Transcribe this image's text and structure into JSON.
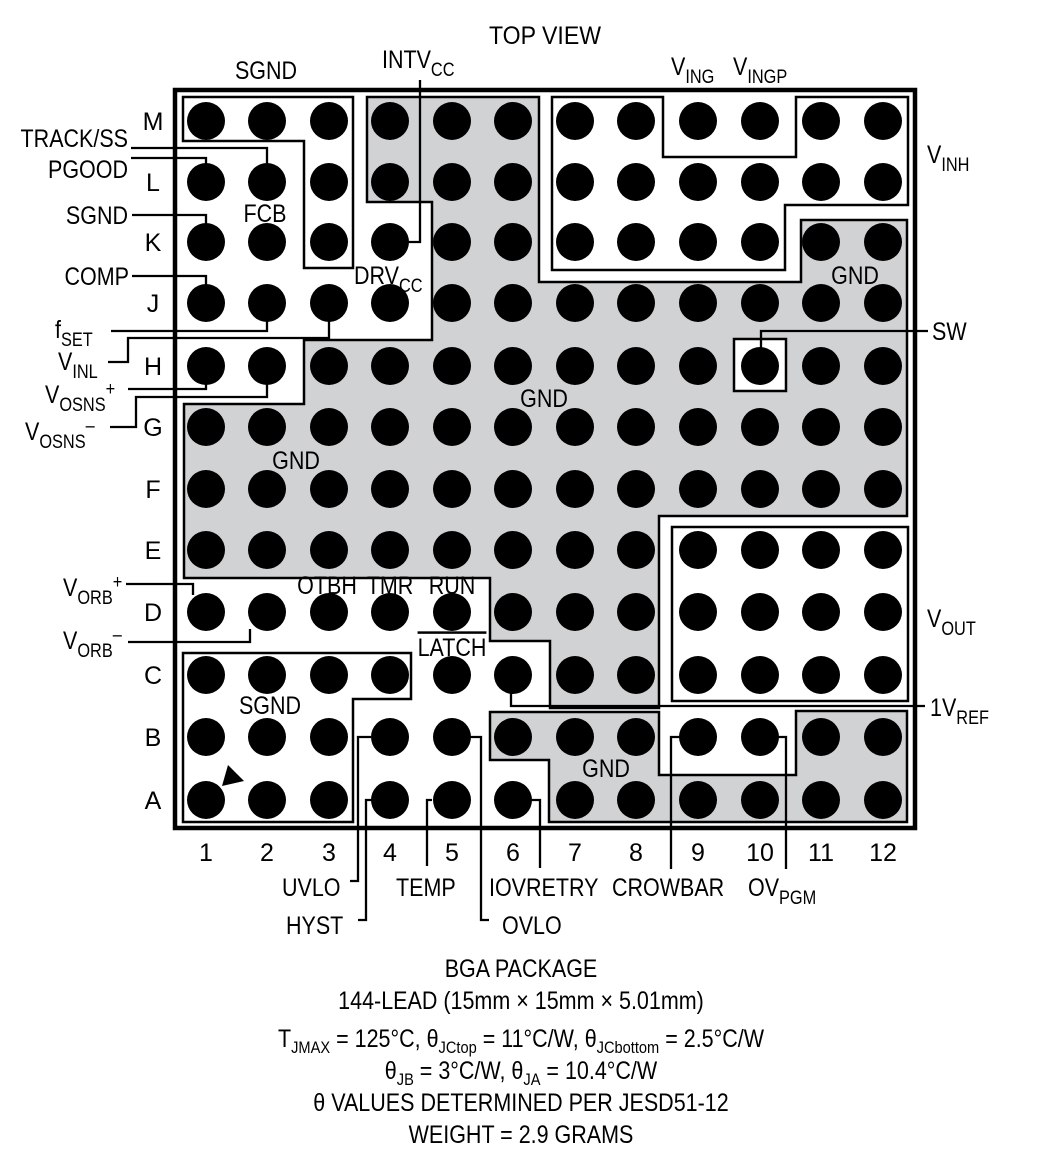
{
  "title": "TOP VIEW",
  "package": {
    "rows": [
      "M",
      "L",
      "K",
      "J",
      "H",
      "G",
      "F",
      "E",
      "D",
      "C",
      "B",
      "A"
    ],
    "columns": [
      "1",
      "2",
      "3",
      "4",
      "5",
      "6",
      "7",
      "8",
      "9",
      "10",
      "11",
      "12"
    ],
    "pin1_marker": "A1",
    "colors": {
      "gnd_fill": "#d1d2d4",
      "ball": "#000000",
      "outline": "#000000",
      "background": "#ffffff"
    }
  },
  "pin_labels": {
    "top": [
      {
        "id": "sgnd-top",
        "text": "SGND"
      },
      {
        "id": "intvcc",
        "text": "INTV",
        "sub": "CC"
      },
      {
        "id": "ving",
        "text": "V",
        "sub": "ING"
      },
      {
        "id": "vingp",
        "text": "V",
        "sub": "INGP"
      }
    ],
    "left": [
      {
        "id": "track-ss",
        "text": "TRACK/SS"
      },
      {
        "id": "pgood",
        "text": "PGOOD"
      },
      {
        "id": "sgnd-left",
        "text": "SGND"
      },
      {
        "id": "comp",
        "text": "COMP"
      },
      {
        "id": "fset",
        "text": "f",
        "sub": "SET"
      },
      {
        "id": "vinl",
        "text": "V",
        "sub": "INL"
      },
      {
        "id": "vosns-plus",
        "text": "V",
        "sub": "OSNS",
        "sup": "+"
      },
      {
        "id": "vosns-minus",
        "text": "V",
        "sub": "OSNS",
        "sup": "–"
      },
      {
        "id": "vorb-plus",
        "text": "V",
        "sub": "ORB",
        "sup": "+"
      },
      {
        "id": "vorb-minus",
        "text": "V",
        "sub": "ORB",
        "sup": "–"
      }
    ],
    "right": [
      {
        "id": "vinh",
        "text": "V",
        "sub": "INH"
      },
      {
        "id": "sw",
        "text": "SW"
      },
      {
        "id": "vout",
        "text": "V",
        "sub": "OUT"
      },
      {
        "id": "1vref",
        "text": "1V",
        "sub": "REF"
      }
    ],
    "bottom": [
      {
        "id": "uvlo",
        "text": "UVLO"
      },
      {
        "id": "hyst",
        "text": "HYST"
      },
      {
        "id": "temp",
        "text": "TEMP"
      },
      {
        "id": "iovretry",
        "text": "IOVRETRY"
      },
      {
        "id": "ovlo",
        "text": "OVLO"
      },
      {
        "id": "crowbar",
        "text": "CROWBAR"
      },
      {
        "id": "ovpgm",
        "text": "OV",
        "sub": "PGM"
      }
    ],
    "internal": [
      {
        "id": "fcb",
        "text": "FCB"
      },
      {
        "id": "drvcc",
        "text": "DRV",
        "sub": "CC"
      },
      {
        "id": "gnd-right-top",
        "text": "GND"
      },
      {
        "id": "gnd-center",
        "text": "GND"
      },
      {
        "id": "gnd-left",
        "text": "GND"
      },
      {
        "id": "otbh",
        "text": "OTBH"
      },
      {
        "id": "tmr",
        "text": "TMR"
      },
      {
        "id": "run",
        "text": "RUN"
      },
      {
        "id": "latch",
        "text": "LATCH",
        "overline": true
      },
      {
        "id": "sgnd-bottom",
        "text": "SGND"
      },
      {
        "id": "gnd-bottom",
        "text": "GND"
      }
    ]
  },
  "caption": {
    "line1": "BGA PACKAGE",
    "line2": "144-LEAD (15mm × 15mm × 5.01mm)",
    "line3": {
      "t": "T",
      "t_sub": "JMAX",
      "rest1": " = 125°C, θ",
      "sub1": "JCtop",
      "rest2": " = 11°C/W, θ",
      "sub2": "JCbottom",
      "rest3": " = 2.5°C/W"
    },
    "line4": {
      "a": "θ",
      "a_sub": "JB",
      "rest1": " = 3°C/W, θ",
      "sub1": "JA",
      "rest2": " = 10.4°C/W"
    },
    "line5": "θ VALUES DETERMINED PER JESD51-12",
    "line6": "WEIGHT = 2.9 GRAMS"
  }
}
